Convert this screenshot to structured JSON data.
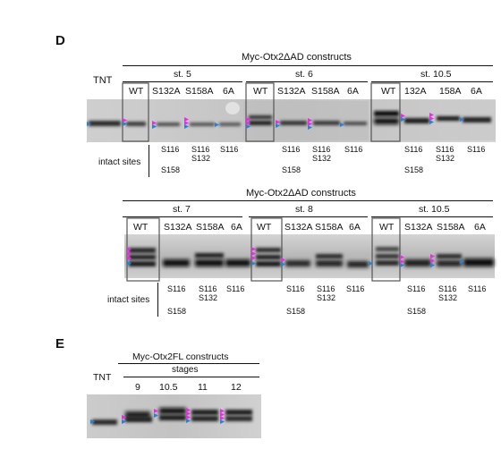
{
  "panel_d": {
    "letter": "D",
    "construct_title": "Myc-Otx2ΔAD constructs",
    "tnt": "TNT",
    "intact_label": "intact sites",
    "blot1": {
      "stages": [
        "st. 5",
        "st. 6",
        "st. 10.5"
      ],
      "lanes": [
        [
          "WT",
          "S132A",
          "S158A",
          "6A"
        ],
        [
          "WT",
          "S132A",
          "S158A",
          "6A"
        ],
        [
          "WT",
          "132A",
          "158A",
          "6A"
        ]
      ]
    },
    "blot2": {
      "stages": [
        "st. 7",
        "st. 8",
        "st. 10.5"
      ],
      "lanes": [
        [
          "WT",
          "S132A",
          "S158A",
          "6A"
        ],
        [
          "WT",
          "S132A",
          "S158A",
          "6A"
        ],
        [
          "WT",
          "S132A",
          "S158A",
          "6A"
        ]
      ]
    },
    "sites": {
      "s132a": [
        "S116",
        "S158"
      ],
      "s158a": [
        "S116",
        "S132"
      ],
      "a6": [
        "S116"
      ]
    }
  },
  "panel_e": {
    "letter": "E",
    "construct_title": "Myc-Otx2FL constructs",
    "stages_label": "stages",
    "tnt": "TNT",
    "lanes": [
      "9",
      "10.5",
      "11",
      "12"
    ]
  },
  "colors": {
    "arrow_magenta": "#e62ee6",
    "arrow_blue": "#2a7fd6",
    "band_dark": "#1a1a1a",
    "blot_bg": "#c9c9c9"
  }
}
